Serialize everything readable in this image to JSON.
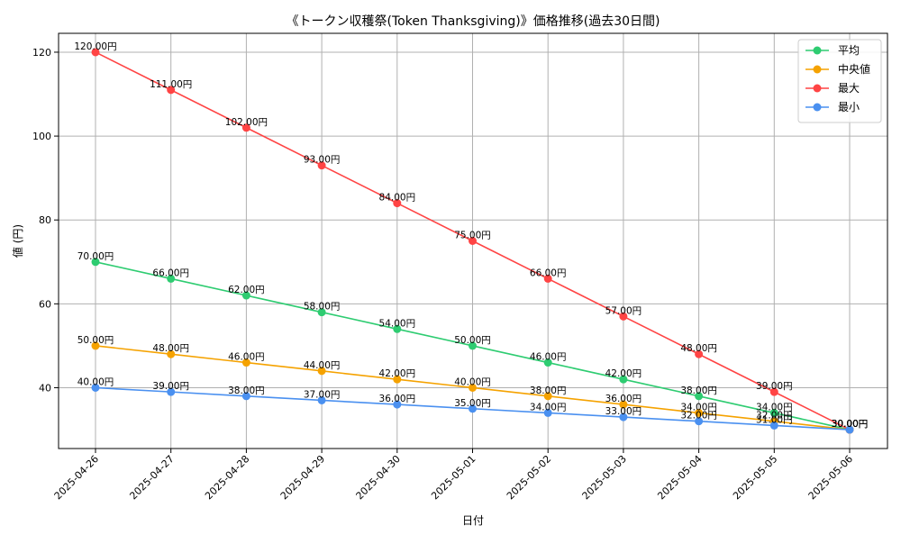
{
  "chart_data": {
    "type": "line",
    "title": "《トークン収穫祭(Token Thanksgiving)》価格推移(過去30日間)",
    "xlabel": "日付",
    "ylabel": "値 (円)",
    "categories": [
      "2025-04-26",
      "2025-04-27",
      "2025-04-28",
      "2025-04-29",
      "2025-04-30",
      "2025-05-01",
      "2025-05-02",
      "2025-05-03",
      "2025-05-04",
      "2025-05-05",
      "2025-05-06"
    ],
    "yticks": [
      40,
      60,
      80,
      100,
      120
    ],
    "ylim": [
      25.5,
      124.5
    ],
    "grid": true,
    "legend_position": "top-right",
    "label_suffix": "円",
    "series": [
      {
        "name": "平均",
        "color": "#2ecc71",
        "values": [
          70,
          66,
          62,
          58,
          54,
          50,
          46,
          42,
          38,
          34,
          30
        ]
      },
      {
        "name": "中央値",
        "color": "#f5a200",
        "values": [
          50,
          48,
          46,
          44,
          42,
          40,
          38,
          36,
          34,
          32,
          30
        ]
      },
      {
        "name": "最大",
        "color": "#ff4444",
        "values": [
          120,
          111,
          102,
          93,
          84,
          75,
          66,
          57,
          48,
          39,
          30
        ]
      },
      {
        "name": "最小",
        "color": "#4a90f0",
        "values": [
          40,
          39,
          38,
          37,
          36,
          35,
          34,
          33,
          32,
          31,
          30
        ]
      }
    ]
  }
}
